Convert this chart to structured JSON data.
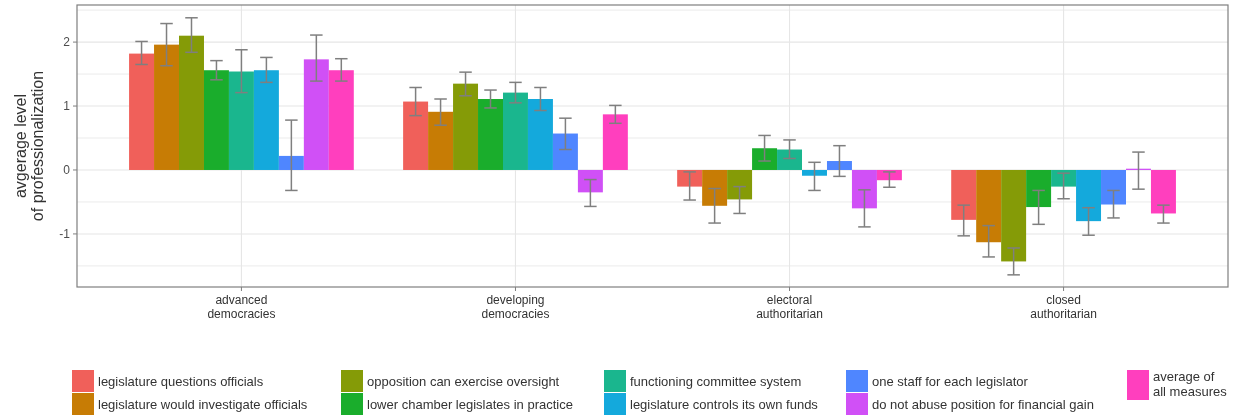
{
  "chart_data": {
    "type": "bar",
    "ylabel": "avgerage level\nof professionalization",
    "categories": [
      "advanced\ndemocracies",
      "developing\ndemocracies",
      "electoral\nauthoritarian",
      "closed\nauthoritarian"
    ],
    "ylim": [
      -1.83,
      2.58
    ],
    "yticks": [
      {
        "value": -1.5,
        "label": null
      },
      -1,
      {
        "value": -0.5,
        "label": null
      },
      0,
      {
        "value": 0.5,
        "label": null
      },
      1,
      {
        "value": 1.5,
        "label": null
      },
      2,
      {
        "value": 2.5,
        "label": null
      }
    ],
    "grid": true,
    "legend": "bottom",
    "series": [
      {
        "name": "legislature questions officials",
        "color": "#f0605a",
        "values": [
          1.82,
          1.07,
          -0.26,
          -0.78
        ],
        "errors": [
          [
            1.65,
            2.01
          ],
          [
            0.85,
            1.29
          ],
          [
            -0.47,
            -0.03
          ],
          [
            -1.03,
            -0.55
          ]
        ]
      },
      {
        "name": "legislature would investigate officials",
        "color": "#c77c05",
        "values": [
          1.96,
          0.91,
          -0.56,
          -1.13
        ],
        "errors": [
          [
            1.63,
            2.29
          ],
          [
            0.7,
            1.11
          ],
          [
            -0.83,
            -0.29
          ],
          [
            -1.36,
            -0.87
          ]
        ]
      },
      {
        "name": "opposition can exercise oversight",
        "color": "#859b07",
        "values": [
          2.1,
          1.35,
          -0.46,
          -1.43
        ],
        "errors": [
          [
            1.84,
            2.38
          ],
          [
            1.16,
            1.53
          ],
          [
            -0.68,
            -0.26
          ],
          [
            -1.64,
            -1.22
          ]
        ]
      },
      {
        "name": "lower chamber legislates in practice",
        "color": "#1aad2c",
        "values": [
          1.56,
          1.11,
          0.34,
          -0.58
        ],
        "errors": [
          [
            1.41,
            1.71
          ],
          [
            0.97,
            1.25
          ],
          [
            0.14,
            0.54
          ],
          [
            -0.85,
            -0.32
          ]
        ]
      },
      {
        "name": "functioning committee system",
        "color": "#1ab68e",
        "values": [
          1.54,
          1.21,
          0.32,
          -0.26
        ],
        "errors": [
          [
            1.21,
            1.88
          ],
          [
            1.05,
            1.37
          ],
          [
            0.18,
            0.47
          ],
          [
            -0.45,
            -0.05
          ]
        ]
      },
      {
        "name": "legislature controls its own funds",
        "color": "#14a9dc",
        "values": [
          1.56,
          1.11,
          -0.09,
          -0.8
        ],
        "errors": [
          [
            1.37,
            1.76
          ],
          [
            0.93,
            1.29
          ],
          [
            -0.32,
            0.12
          ],
          [
            -1.02,
            -0.59
          ]
        ]
      },
      {
        "name": "one staff for each legislator",
        "color": "#4f86ff",
        "values": [
          0.22,
          0.57,
          0.14,
          -0.54
        ],
        "errors": [
          [
            -0.32,
            0.78
          ],
          [
            0.32,
            0.81
          ],
          [
            -0.1,
            0.38
          ],
          [
            -0.75,
            -0.32
          ]
        ]
      },
      {
        "name": "do not abuse position for financial gain",
        "color": "#d050f6",
        "values": [
          1.73,
          -0.35,
          -0.6,
          0.02
        ],
        "errors": [
          [
            1.39,
            2.11
          ],
          [
            -0.57,
            -0.15
          ],
          [
            -0.89,
            -0.31
          ],
          [
            -0.3,
            0.28
          ]
        ]
      },
      {
        "name": "average of\nall measures",
        "color": "#ff3fbe",
        "values": [
          1.56,
          0.87,
          -0.16,
          -0.68
        ],
        "errors": [
          [
            1.39,
            1.74
          ],
          [
            0.73,
            1.01
          ],
          [
            -0.27,
            -0.03
          ],
          [
            -0.83,
            -0.55
          ]
        ]
      }
    ]
  }
}
